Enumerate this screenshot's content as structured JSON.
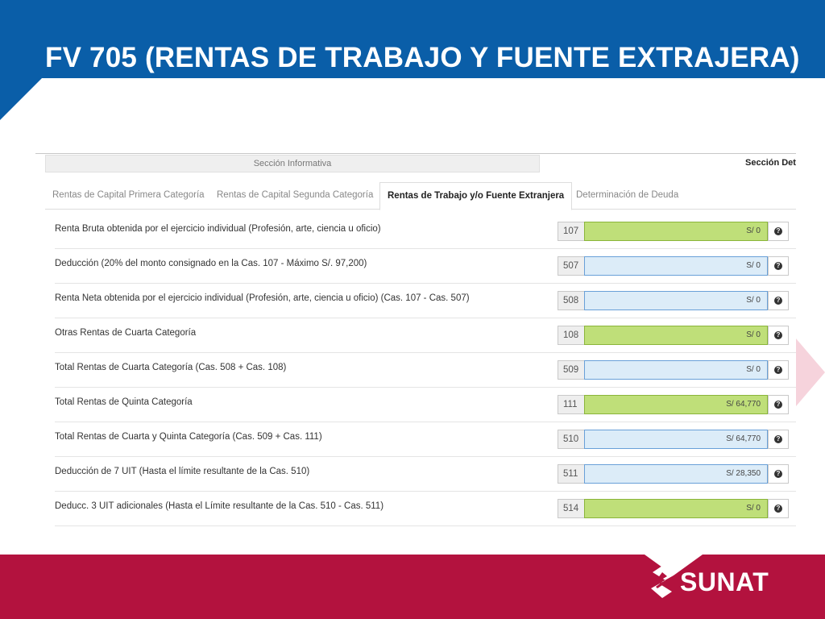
{
  "slide": {
    "title": "FV 705 (RENTAS DE TRABAJO Y FUENTE EXTRAJERA)",
    "logo_text": "SUNAT"
  },
  "colors": {
    "header_blue": "#0a5ea8",
    "footer_red": "#b3123e",
    "field_green": "#bfdf79",
    "field_blue": "#dcecf8"
  },
  "sections": {
    "left": "Sección Informativa",
    "right": "Sección Det"
  },
  "tabs": [
    {
      "label": "Rentas de Capital Primera Categoría",
      "active": false
    },
    {
      "label": "Rentas de Capital Segunda Categoría",
      "active": false
    },
    {
      "label": "Rentas de Trabajo y/o Fuente Extranjera",
      "active": true
    },
    {
      "label": "Determinación de Deuda",
      "active": false
    }
  ],
  "rows": [
    {
      "label": "Renta Bruta obtenida por el ejercicio individual (Profesión, arte, ciencia u oficio)",
      "code": "107",
      "value": "S/ 0",
      "style": "green",
      "help_icon": "question-circle-icon"
    },
    {
      "label": "Deducción (20% del monto consignado en la Cas. 107 - Máximo S/. 97,200)",
      "code": "507",
      "value": "S/ 0",
      "style": "blue",
      "help_icon": "question-circle-icon"
    },
    {
      "label": "Renta Neta obtenida por el ejercicio individual (Profesión, arte, ciencia u oficio) (Cas. 107 - Cas. 507)",
      "code": "508",
      "value": "S/ 0",
      "style": "blue",
      "help_icon": "question-circle-icon"
    },
    {
      "label": "Otras Rentas de Cuarta Categoría",
      "code": "108",
      "value": "S/ 0",
      "style": "green",
      "help_icon": "question-circle-icon"
    },
    {
      "label": "Total Rentas de Cuarta Categoría (Cas. 508 + Cas. 108)",
      "code": "509",
      "value": "S/ 0",
      "style": "blue",
      "help_icon": "question-circle-icon"
    },
    {
      "label": "Total Rentas de Quinta Categoría",
      "code": "111",
      "value": "S/ 64,770",
      "style": "green",
      "help_icon": "question-circle-icon"
    },
    {
      "label": "Total Rentas de Cuarta y Quinta Categoría (Cas. 509 + Cas. 111)",
      "code": "510",
      "value": "S/ 64,770",
      "style": "blue",
      "help_icon": "question-circle-icon"
    },
    {
      "label": "Deducción de 7 UIT (Hasta el límite resultante de la Cas. 510)",
      "code": "511",
      "value": "S/ 28,350",
      "style": "blue",
      "help_icon": "question-circle-icon"
    },
    {
      "label": "Deducc. 3 UIT adicionales (Hasta el Límite resultante de la Cas. 510 - Cas. 511)",
      "code": "514",
      "value": "S/ 0",
      "style": "green",
      "help_icon": "question-circle-icon"
    }
  ]
}
